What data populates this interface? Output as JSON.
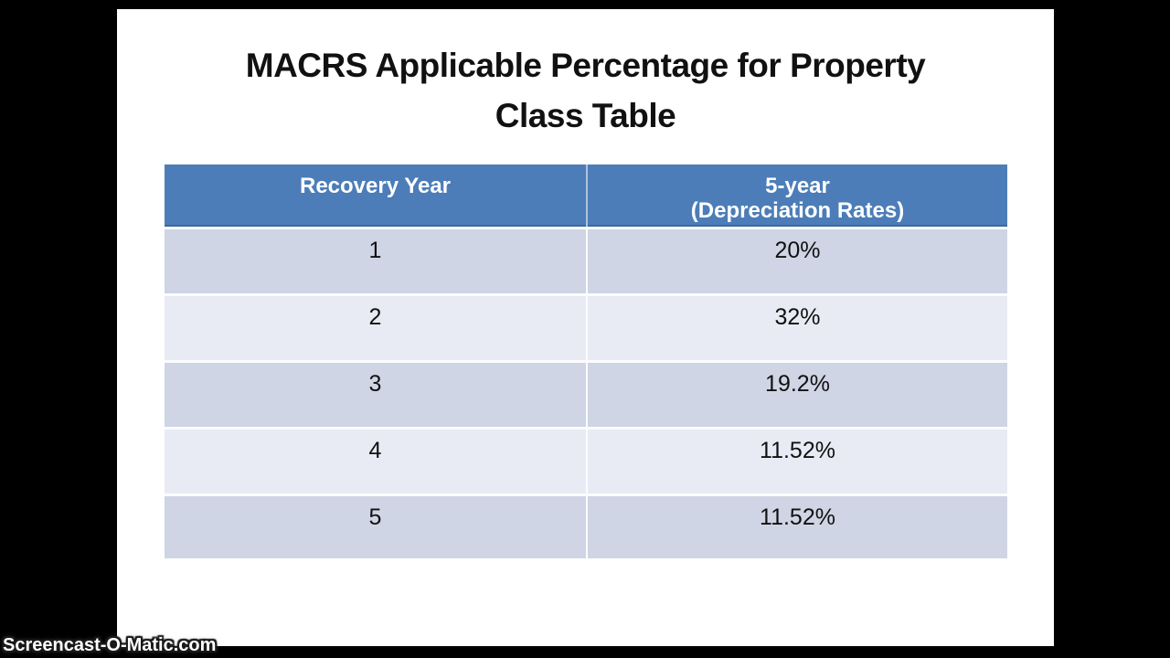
{
  "page": {
    "background_color": "#000000",
    "slide_background_color": "#ffffff"
  },
  "title": {
    "line1": "MACRS Applicable Percentage for Property",
    "line2": "Class Table"
  },
  "table": {
    "header": {
      "col1": "Recovery Year",
      "col2_line1": "5-year",
      "col2_line2": "(Depreciation Rates)"
    },
    "rows": [
      {
        "year": "1",
        "rate": "20%"
      },
      {
        "year": "2",
        "rate": "32%"
      },
      {
        "year": "3",
        "rate": "19.2%"
      },
      {
        "year": "4",
        "rate": "11.52%"
      },
      {
        "year": "5",
        "rate": "11.52%"
      }
    ],
    "colors": {
      "header_bg": "#4c7db8",
      "header_text": "#ffffff",
      "band_dark": "#cfd5e4",
      "band_light": "#e8ebf3",
      "divider": "#fbfcfe",
      "header_bottom_edge": "#3a69a0"
    }
  },
  "watermark": {
    "text": "Screencast-O-Matic.com"
  }
}
